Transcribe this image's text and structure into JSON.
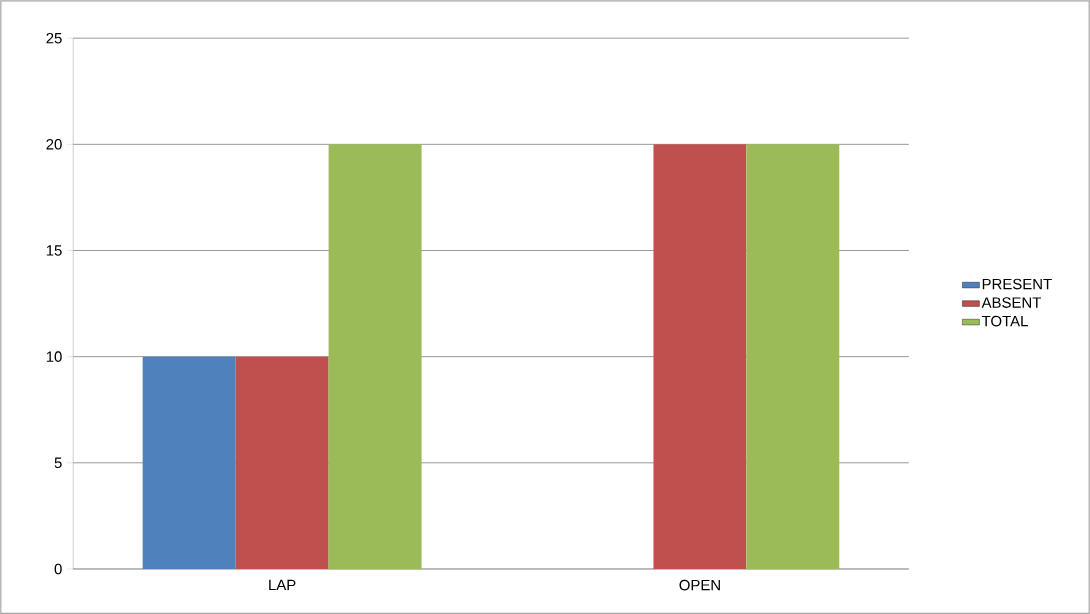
{
  "chart_data": {
    "type": "bar",
    "categories": [
      "LAP",
      "OPEN"
    ],
    "series": [
      {
        "name": "PRESENT",
        "color": "#4f81bd",
        "values": [
          10,
          0
        ]
      },
      {
        "name": "ABSENT",
        "color": "#c0504d",
        "values": [
          10,
          20
        ]
      },
      {
        "name": "TOTAL",
        "color": "#9bbb59",
        "values": [
          20,
          20
        ]
      }
    ],
    "ylim": [
      0,
      25
    ],
    "yticks": [
      0,
      5,
      10,
      15,
      20,
      25
    ],
    "grid": "y",
    "legend": "right"
  }
}
